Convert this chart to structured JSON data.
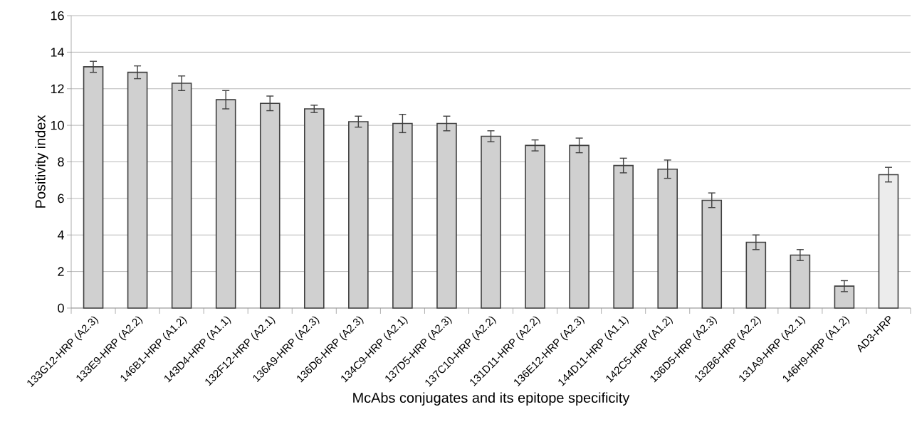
{
  "chart_data": {
    "type": "bar",
    "xlabel": "McAbs conjugates and its epitope specificity",
    "ylabel": "Positivity index",
    "categories": [
      "133G12-HRP (A2.3)",
      "133E9-HRP (A2.2)",
      "146B1-HRP (A1.2)",
      "143D4-HRP (A1.1)",
      "132F12-HRP (A2.1)",
      "136A9-HRP (A2.3)",
      "136D6-HRP (A2.3)",
      "134C9-HRP (A2.1)",
      "137D5-HRP (A2.3)",
      "137C10-HRP (A2.2)",
      "131D11-HRP (A2.2)",
      "136E12-HRP (A2.3)",
      "144D11-HRP (A1.1)",
      "142C5-HRP (A1.2)",
      "136D5-HRP (A2.3)",
      "132B6-HRP (A2.2)",
      "131A9-HRP (A2.1)",
      "146H9-HRP (A1.2)",
      "AD3-HRP"
    ],
    "values": [
      13.2,
      12.9,
      12.3,
      11.4,
      11.2,
      10.9,
      10.2,
      10.1,
      10.1,
      9.4,
      8.9,
      8.9,
      7.8,
      7.6,
      5.9,
      3.6,
      2.9,
      1.2,
      7.3
    ],
    "errors": [
      0.3,
      0.35,
      0.4,
      0.5,
      0.4,
      0.2,
      0.3,
      0.5,
      0.4,
      0.3,
      0.3,
      0.4,
      0.4,
      0.5,
      0.4,
      0.4,
      0.3,
      0.3,
      0.4
    ],
    "colors": [
      "#d0d0d0",
      "#d0d0d0",
      "#d0d0d0",
      "#d0d0d0",
      "#d0d0d0",
      "#d0d0d0",
      "#d0d0d0",
      "#d0d0d0",
      "#d0d0d0",
      "#d0d0d0",
      "#d0d0d0",
      "#d0d0d0",
      "#d0d0d0",
      "#d0d0d0",
      "#d0d0d0",
      "#d0d0d0",
      "#d0d0d0",
      "#d0d0d0",
      "#ececec"
    ],
    "ylim": [
      0,
      16
    ],
    "yticks": [
      0,
      2,
      4,
      6,
      8,
      10,
      12,
      14,
      16
    ],
    "grid": "y"
  }
}
